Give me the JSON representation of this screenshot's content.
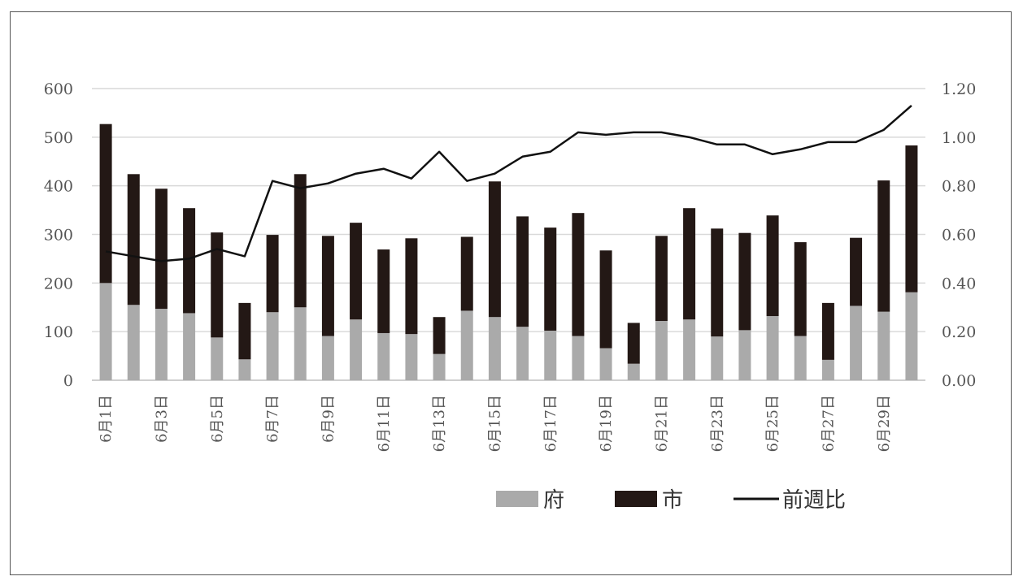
{
  "chart_data": {
    "type": "bar",
    "stacked": true,
    "title": "",
    "xlabel": "",
    "ylabel": "",
    "y2label": "",
    "categories": [
      "6月1日",
      "6月2日",
      "6月3日",
      "6月4日",
      "6月5日",
      "6月6日",
      "6月7日",
      "6月8日",
      "6月9日",
      "6月10日",
      "6月11日",
      "6月12日",
      "6月13日",
      "6月14日",
      "6月15日",
      "6月16日",
      "6月17日",
      "6月18日",
      "6月19日",
      "6月20日",
      "6月21日",
      "6月22日",
      "6月23日",
      "6月24日",
      "6月25日",
      "6月26日",
      "6月27日",
      "6月28日",
      "6月29日",
      "6月30日"
    ],
    "visible_tick_labels": [
      "6月1日",
      "6月3日",
      "6月5日",
      "6月7日",
      "6月9日",
      "6月11日",
      "6月13日",
      "6月15日",
      "6月17日",
      "6月19日",
      "6月21日",
      "6月23日",
      "6月25日",
      "6月27日",
      "6月29日"
    ],
    "series": [
      {
        "name": "府",
        "type": "bar",
        "axis": "left",
        "color": "#aaaaaa",
        "values": [
          200,
          155,
          147,
          138,
          88,
          43,
          140,
          150,
          91,
          125,
          97,
          95,
          54,
          143,
          130,
          110,
          102,
          91,
          66,
          34,
          122,
          125,
          90,
          103,
          132,
          91,
          42,
          153,
          141,
          181
        ]
      },
      {
        "name": "市",
        "type": "bar",
        "axis": "left",
        "color": "#231815",
        "values": [
          327,
          269,
          247,
          216,
          216,
          116,
          159,
          274,
          206,
          199,
          172,
          197,
          76,
          152,
          279,
          227,
          212,
          253,
          201,
          84,
          175,
          229,
          222,
          200,
          207,
          193,
          117,
          140,
          270,
          302
        ]
      },
      {
        "name": "前週比",
        "type": "line",
        "axis": "right",
        "color": "#111111",
        "values": [
          0.53,
          0.51,
          0.49,
          0.5,
          0.54,
          0.51,
          0.82,
          0.79,
          0.81,
          0.85,
          0.87,
          0.83,
          0.94,
          0.82,
          0.85,
          0.92,
          0.94,
          1.02,
          1.01,
          1.02,
          1.02,
          1.0,
          0.97,
          0.97,
          0.93,
          0.95,
          0.98,
          0.98,
          1.03,
          1.13
        ]
      }
    ],
    "ylim": [
      0,
      600
    ],
    "y_ticks": [
      "0",
      "100",
      "200",
      "300",
      "400",
      "500",
      "600"
    ],
    "y2lim": [
      0,
      1.2
    ],
    "y2_ticks": [
      "0.00",
      "0.20",
      "0.40",
      "0.60",
      "0.80",
      "1.00",
      "1.20"
    ],
    "grid": true,
    "legend_position": "bottom-right"
  }
}
